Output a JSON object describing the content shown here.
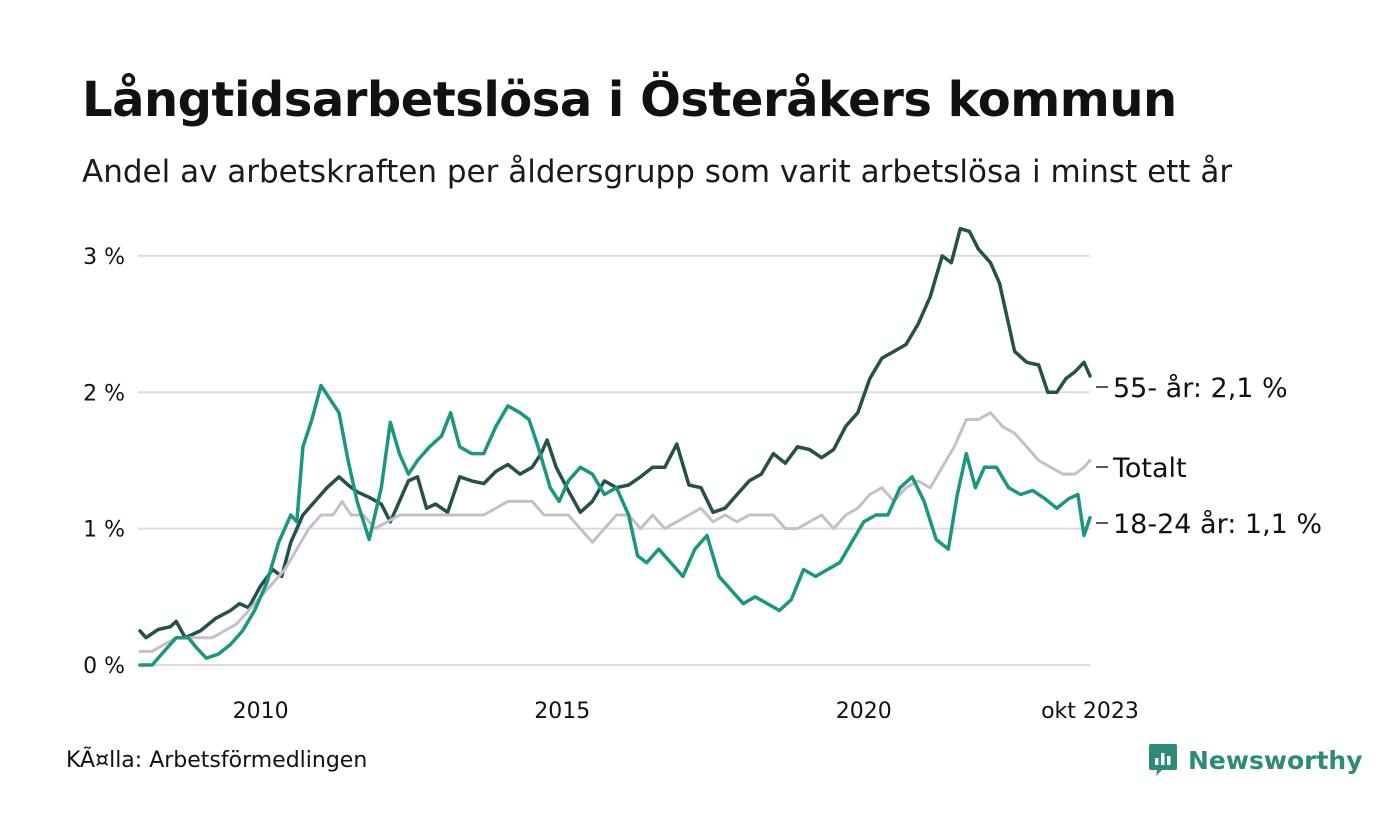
{
  "header": {
    "title": "Långtidsarbetslösa i Österåkers kommun",
    "subtitle": "Andel av arbetskraften per åldersgrupp som varit arbetslösa i minst ett år"
  },
  "footer": {
    "source": "KÃ¤lla: Arbetsförmedlingen",
    "brand": "Newsworthy"
  },
  "colors": {
    "older": "#24514a",
    "young": "#1a9682",
    "total": "#c4bfcc",
    "grid": "#dcdcdc",
    "brand": "#2e8b7a"
  },
  "chart_data": {
    "type": "line",
    "title": "Långtidsarbetslösa i Österåkers kommun",
    "xlabel": "",
    "ylabel": "",
    "ylim": [
      0,
      3.3
    ],
    "y_ticks": [
      {
        "value": 0,
        "label": "0 %"
      },
      {
        "value": 1,
        "label": "1 %"
      },
      {
        "value": 2,
        "label": "2 %"
      },
      {
        "value": 3,
        "label": "3 %"
      }
    ],
    "x_ticks": [
      {
        "value": 2010.0,
        "label": "2010"
      },
      {
        "value": 2015.0,
        "label": "2015"
      },
      {
        "value": 2020.0,
        "label": "2020"
      },
      {
        "value": 2023.75,
        "label": "okt 2023"
      }
    ],
    "grid": true,
    "series": [
      {
        "name": "55- år",
        "end_label": "55- år: 2,1 %",
        "color_key": "older",
        "points": [
          [
            2008.0,
            0.25
          ],
          [
            2008.1,
            0.2
          ],
          [
            2008.3,
            0.26
          ],
          [
            2008.5,
            0.28
          ],
          [
            2008.6,
            0.32
          ],
          [
            2008.75,
            0.2
          ],
          [
            2009.0,
            0.25
          ],
          [
            2009.25,
            0.34
          ],
          [
            2009.5,
            0.4
          ],
          [
            2009.65,
            0.45
          ],
          [
            2009.8,
            0.42
          ],
          [
            2010.0,
            0.58
          ],
          [
            2010.2,
            0.7
          ],
          [
            2010.35,
            0.65
          ],
          [
            2010.5,
            0.9
          ],
          [
            2010.7,
            1.1
          ],
          [
            2010.9,
            1.2
          ],
          [
            2011.1,
            1.3
          ],
          [
            2011.3,
            1.38
          ],
          [
            2011.45,
            1.32
          ],
          [
            2011.6,
            1.27
          ],
          [
            2011.8,
            1.23
          ],
          [
            2012.0,
            1.18
          ],
          [
            2012.15,
            1.05
          ],
          [
            2012.3,
            1.2
          ],
          [
            2012.45,
            1.35
          ],
          [
            2012.6,
            1.38
          ],
          [
            2012.75,
            1.15
          ],
          [
            2012.9,
            1.18
          ],
          [
            2013.1,
            1.12
          ],
          [
            2013.3,
            1.38
          ],
          [
            2013.5,
            1.35
          ],
          [
            2013.7,
            1.33
          ],
          [
            2013.9,
            1.42
          ],
          [
            2014.1,
            1.47
          ],
          [
            2014.3,
            1.4
          ],
          [
            2014.5,
            1.45
          ],
          [
            2014.65,
            1.55
          ],
          [
            2014.75,
            1.65
          ],
          [
            2014.9,
            1.45
          ],
          [
            2015.1,
            1.28
          ],
          [
            2015.3,
            1.12
          ],
          [
            2015.5,
            1.2
          ],
          [
            2015.7,
            1.35
          ],
          [
            2015.9,
            1.3
          ],
          [
            2016.1,
            1.32
          ],
          [
            2016.3,
            1.38
          ],
          [
            2016.5,
            1.45
          ],
          [
            2016.7,
            1.45
          ],
          [
            2016.9,
            1.62
          ],
          [
            2017.1,
            1.32
          ],
          [
            2017.3,
            1.3
          ],
          [
            2017.5,
            1.12
          ],
          [
            2017.7,
            1.15
          ],
          [
            2017.9,
            1.25
          ],
          [
            2018.1,
            1.35
          ],
          [
            2018.3,
            1.4
          ],
          [
            2018.5,
            1.55
          ],
          [
            2018.7,
            1.48
          ],
          [
            2018.9,
            1.6
          ],
          [
            2019.1,
            1.58
          ],
          [
            2019.3,
            1.52
          ],
          [
            2019.5,
            1.58
          ],
          [
            2019.7,
            1.75
          ],
          [
            2019.9,
            1.85
          ],
          [
            2020.1,
            2.1
          ],
          [
            2020.3,
            2.25
          ],
          [
            2020.5,
            2.3
          ],
          [
            2020.7,
            2.35
          ],
          [
            2020.9,
            2.5
          ],
          [
            2021.1,
            2.7
          ],
          [
            2021.3,
            3.0
          ],
          [
            2021.45,
            2.95
          ],
          [
            2021.6,
            3.2
          ],
          [
            2021.75,
            3.18
          ],
          [
            2021.9,
            3.05
          ],
          [
            2022.1,
            2.95
          ],
          [
            2022.25,
            2.8
          ],
          [
            2022.4,
            2.5
          ],
          [
            2022.5,
            2.3
          ],
          [
            2022.7,
            2.22
          ],
          [
            2022.9,
            2.2
          ],
          [
            2023.05,
            2.0
          ],
          [
            2023.2,
            2.0
          ],
          [
            2023.35,
            2.1
          ],
          [
            2023.5,
            2.15
          ],
          [
            2023.65,
            2.22
          ],
          [
            2023.75,
            2.12
          ]
        ]
      },
      {
        "name": "Totalt",
        "end_label": "Totalt",
        "color_key": "total",
        "points": [
          [
            2008.0,
            0.1
          ],
          [
            2008.2,
            0.1
          ],
          [
            2008.4,
            0.15
          ],
          [
            2008.6,
            0.2
          ],
          [
            2008.8,
            0.2
          ],
          [
            2009.0,
            0.2
          ],
          [
            2009.2,
            0.2
          ],
          [
            2009.4,
            0.25
          ],
          [
            2009.6,
            0.3
          ],
          [
            2009.8,
            0.4
          ],
          [
            2010.0,
            0.5
          ],
          [
            2010.2,
            0.6
          ],
          [
            2010.4,
            0.7
          ],
          [
            2010.6,
            0.85
          ],
          [
            2010.8,
            1.0
          ],
          [
            2011.0,
            1.1
          ],
          [
            2011.2,
            1.1
          ],
          [
            2011.35,
            1.2
          ],
          [
            2011.5,
            1.1
          ],
          [
            2011.7,
            1.1
          ],
          [
            2011.9,
            1.0
          ],
          [
            2012.1,
            1.05
          ],
          [
            2012.3,
            1.1
          ],
          [
            2012.5,
            1.1
          ],
          [
            2012.7,
            1.1
          ],
          [
            2012.9,
            1.1
          ],
          [
            2013.1,
            1.1
          ],
          [
            2013.3,
            1.1
          ],
          [
            2013.5,
            1.1
          ],
          [
            2013.7,
            1.1
          ],
          [
            2013.9,
            1.15
          ],
          [
            2014.1,
            1.2
          ],
          [
            2014.3,
            1.2
          ],
          [
            2014.5,
            1.2
          ],
          [
            2014.7,
            1.1
          ],
          [
            2014.9,
            1.1
          ],
          [
            2015.1,
            1.1
          ],
          [
            2015.3,
            1.0
          ],
          [
            2015.5,
            0.9
          ],
          [
            2015.7,
            1.0
          ],
          [
            2015.9,
            1.1
          ],
          [
            2016.1,
            1.1
          ],
          [
            2016.3,
            1.0
          ],
          [
            2016.5,
            1.1
          ],
          [
            2016.7,
            1.0
          ],
          [
            2016.9,
            1.05
          ],
          [
            2017.1,
            1.1
          ],
          [
            2017.3,
            1.15
          ],
          [
            2017.5,
            1.05
          ],
          [
            2017.7,
            1.1
          ],
          [
            2017.9,
            1.05
          ],
          [
            2018.1,
            1.1
          ],
          [
            2018.3,
            1.1
          ],
          [
            2018.5,
            1.1
          ],
          [
            2018.7,
            1.0
          ],
          [
            2018.9,
            1.0
          ],
          [
            2019.1,
            1.05
          ],
          [
            2019.3,
            1.1
          ],
          [
            2019.5,
            1.0
          ],
          [
            2019.7,
            1.1
          ],
          [
            2019.9,
            1.15
          ],
          [
            2020.1,
            1.25
          ],
          [
            2020.3,
            1.3
          ],
          [
            2020.5,
            1.2
          ],
          [
            2020.7,
            1.3
          ],
          [
            2020.9,
            1.35
          ],
          [
            2021.1,
            1.3
          ],
          [
            2021.3,
            1.45
          ],
          [
            2021.5,
            1.6
          ],
          [
            2021.7,
            1.8
          ],
          [
            2021.9,
            1.8
          ],
          [
            2022.1,
            1.85
          ],
          [
            2022.3,
            1.75
          ],
          [
            2022.5,
            1.7
          ],
          [
            2022.7,
            1.6
          ],
          [
            2022.9,
            1.5
          ],
          [
            2023.1,
            1.45
          ],
          [
            2023.3,
            1.4
          ],
          [
            2023.5,
            1.4
          ],
          [
            2023.65,
            1.45
          ],
          [
            2023.75,
            1.5
          ]
        ]
      },
      {
        "name": "18-24 år",
        "end_label": "18-24 år: 1,1 %",
        "color_key": "young",
        "points": [
          [
            2008.0,
            0.0
          ],
          [
            2008.2,
            0.0
          ],
          [
            2008.4,
            0.1
          ],
          [
            2008.6,
            0.2
          ],
          [
            2008.8,
            0.2
          ],
          [
            2008.95,
            0.12
          ],
          [
            2009.1,
            0.05
          ],
          [
            2009.3,
            0.08
          ],
          [
            2009.5,
            0.15
          ],
          [
            2009.7,
            0.25
          ],
          [
            2009.9,
            0.4
          ],
          [
            2010.1,
            0.6
          ],
          [
            2010.3,
            0.9
          ],
          [
            2010.5,
            1.1
          ],
          [
            2010.6,
            1.05
          ],
          [
            2010.7,
            1.6
          ],
          [
            2010.85,
            1.8
          ],
          [
            2011.0,
            2.05
          ],
          [
            2011.15,
            1.95
          ],
          [
            2011.3,
            1.85
          ],
          [
            2011.45,
            1.5
          ],
          [
            2011.6,
            1.2
          ],
          [
            2011.8,
            0.92
          ],
          [
            2012.0,
            1.3
          ],
          [
            2012.15,
            1.78
          ],
          [
            2012.3,
            1.55
          ],
          [
            2012.45,
            1.4
          ],
          [
            2012.6,
            1.5
          ],
          [
            2012.8,
            1.6
          ],
          [
            2013.0,
            1.68
          ],
          [
            2013.15,
            1.85
          ],
          [
            2013.3,
            1.6
          ],
          [
            2013.5,
            1.55
          ],
          [
            2013.7,
            1.55
          ],
          [
            2013.9,
            1.75
          ],
          [
            2014.1,
            1.9
          ],
          [
            2014.3,
            1.85
          ],
          [
            2014.45,
            1.8
          ],
          [
            2014.6,
            1.6
          ],
          [
            2014.8,
            1.3
          ],
          [
            2014.95,
            1.2
          ],
          [
            2015.1,
            1.35
          ],
          [
            2015.3,
            1.45
          ],
          [
            2015.5,
            1.4
          ],
          [
            2015.7,
            1.25
          ],
          [
            2015.9,
            1.3
          ],
          [
            2016.1,
            1.1
          ],
          [
            2016.25,
            0.8
          ],
          [
            2016.4,
            0.75
          ],
          [
            2016.6,
            0.85
          ],
          [
            2016.8,
            0.75
          ],
          [
            2017.0,
            0.65
          ],
          [
            2017.2,
            0.85
          ],
          [
            2017.4,
            0.95
          ],
          [
            2017.6,
            0.65
          ],
          [
            2017.8,
            0.55
          ],
          [
            2018.0,
            0.45
          ],
          [
            2018.2,
            0.5
          ],
          [
            2018.4,
            0.45
          ],
          [
            2018.6,
            0.4
          ],
          [
            2018.8,
            0.48
          ],
          [
            2019.0,
            0.7
          ],
          [
            2019.2,
            0.65
          ],
          [
            2019.4,
            0.7
          ],
          [
            2019.6,
            0.75
          ],
          [
            2019.8,
            0.9
          ],
          [
            2020.0,
            1.05
          ],
          [
            2020.2,
            1.1
          ],
          [
            2020.4,
            1.1
          ],
          [
            2020.6,
            1.3
          ],
          [
            2020.8,
            1.38
          ],
          [
            2021.0,
            1.2
          ],
          [
            2021.2,
            0.92
          ],
          [
            2021.4,
            0.85
          ],
          [
            2021.55,
            1.25
          ],
          [
            2021.7,
            1.55
          ],
          [
            2021.85,
            1.3
          ],
          [
            2022.0,
            1.45
          ],
          [
            2022.2,
            1.45
          ],
          [
            2022.4,
            1.3
          ],
          [
            2022.6,
            1.25
          ],
          [
            2022.8,
            1.28
          ],
          [
            2023.0,
            1.22
          ],
          [
            2023.2,
            1.15
          ],
          [
            2023.4,
            1.22
          ],
          [
            2023.55,
            1.25
          ],
          [
            2023.65,
            0.95
          ],
          [
            2023.75,
            1.08
          ]
        ]
      }
    ]
  }
}
